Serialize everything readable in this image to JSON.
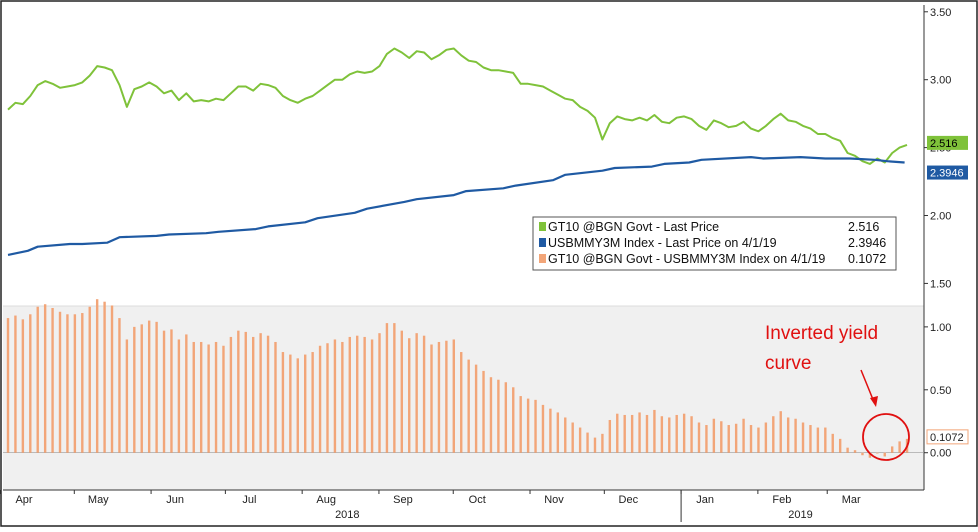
{
  "colors": {
    "gt10": "#7fc23a",
    "usbmmy3m": "#1f5aa3",
    "spread": "#f2a578",
    "spread_panel_bg": "#f0f0f0",
    "annotation": "#e01010",
    "axis": "#333333"
  },
  "chart_data": [
    {
      "type": "line",
      "panel": "upper",
      "ylim": [
        1.4,
        3.55
      ],
      "y_ticks": [
        "3.50",
        "3.00",
        "2.50",
        "2.00",
        "1.50"
      ],
      "y_tick_values": [
        3.5,
        3.0,
        2.5,
        2.0,
        1.5
      ],
      "x_range_days": [
        0,
        365
      ],
      "series": [
        {
          "name": "GT10 @BGN Govt - Last Price",
          "legend_value": "2.516",
          "end_label": "2.516",
          "color": "#7fc23a",
          "x": [
            0,
            3,
            6,
            9,
            12,
            15,
            18,
            21,
            24,
            27,
            30,
            33,
            36,
            39,
            42,
            45,
            48,
            51,
            54,
            57,
            60,
            63,
            66,
            69,
            72,
            75,
            78,
            81,
            84,
            87,
            90,
            93,
            96,
            99,
            102,
            105,
            108,
            111,
            114,
            117,
            120,
            123,
            126,
            129,
            132,
            135,
            138,
            141,
            144,
            147,
            150,
            153,
            156,
            159,
            162,
            165,
            168,
            171,
            174,
            177,
            180,
            183,
            186,
            189,
            192,
            195,
            198,
            201,
            204,
            207,
            210,
            213,
            216,
            219,
            222,
            225,
            228,
            231,
            234,
            237,
            240,
            243,
            246,
            249,
            252,
            255,
            258,
            261,
            264,
            267,
            270,
            273,
            276,
            279,
            282,
            285,
            288,
            291,
            294,
            297,
            300,
            303,
            306,
            309,
            312,
            315,
            318,
            321,
            324,
            327,
            330,
            333,
            336,
            339,
            342,
            345,
            348,
            351,
            354,
            357,
            360,
            363
          ],
          "y": [
            2.78,
            2.83,
            2.82,
            2.88,
            2.96,
            2.99,
            2.97,
            2.94,
            2.95,
            2.96,
            2.98,
            3.03,
            3.1,
            3.09,
            3.07,
            2.96,
            2.8,
            2.93,
            2.95,
            2.98,
            2.95,
            2.9,
            2.92,
            2.85,
            2.9,
            2.84,
            2.85,
            2.84,
            2.86,
            2.85,
            2.9,
            2.95,
            2.95,
            2.92,
            2.97,
            2.96,
            2.94,
            2.88,
            2.85,
            2.83,
            2.86,
            2.88,
            2.92,
            2.96,
            3.0,
            3.0,
            3.04,
            3.06,
            3.05,
            3.06,
            3.1,
            3.19,
            3.23,
            3.2,
            3.16,
            3.21,
            3.2,
            3.15,
            3.18,
            3.22,
            3.23,
            3.18,
            3.14,
            3.13,
            3.09,
            3.07,
            3.07,
            3.06,
            3.05,
            2.97,
            2.97,
            2.96,
            2.95,
            2.92,
            2.89,
            2.86,
            2.85,
            2.8,
            2.77,
            2.72,
            2.56,
            2.68,
            2.73,
            2.71,
            2.7,
            2.72,
            2.7,
            2.74,
            2.69,
            2.68,
            2.72,
            2.73,
            2.71,
            2.66,
            2.63,
            2.7,
            2.68,
            2.65,
            2.66,
            2.69,
            2.64,
            2.62,
            2.66,
            2.71,
            2.75,
            2.7,
            2.69,
            2.66,
            2.64,
            2.6,
            2.6,
            2.57,
            2.55,
            2.46,
            2.44,
            2.4,
            2.38,
            2.42,
            2.39,
            2.46,
            2.5,
            2.52
          ]
        },
        {
          "name": "USBMMY3M Index - Last Price on 4/1/19",
          "legend_value": "2.3946",
          "end_label": "2.3946",
          "color": "#1f5aa3",
          "x": [
            0,
            8,
            12,
            25,
            30,
            40,
            45,
            60,
            65,
            80,
            85,
            100,
            105,
            120,
            125,
            140,
            145,
            160,
            165,
            180,
            185,
            200,
            205,
            220,
            225,
            240,
            245,
            260,
            265,
            275,
            280,
            300,
            305,
            320,
            330,
            340,
            350,
            355,
            362
          ],
          "y": [
            1.71,
            1.74,
            1.77,
            1.79,
            1.79,
            1.8,
            1.84,
            1.85,
            1.86,
            1.87,
            1.88,
            1.9,
            1.92,
            1.95,
            1.98,
            2.02,
            2.05,
            2.1,
            2.12,
            2.15,
            2.18,
            2.2,
            2.22,
            2.26,
            2.3,
            2.33,
            2.35,
            2.36,
            2.38,
            2.39,
            2.41,
            2.43,
            2.42,
            2.43,
            2.42,
            2.42,
            2.41,
            2.4,
            2.39
          ]
        }
      ]
    },
    {
      "type": "bar",
      "panel": "lower",
      "ylim": [
        -0.05,
        1.15
      ],
      "y_ticks": [
        "1.00",
        "0.50",
        "0.00"
      ],
      "y_tick_values": [
        1.0,
        0.5,
        0.0
      ],
      "series": [
        {
          "name": "GT10 @BGN Govt - USBMMY3M Index on 4/1/19",
          "legend_value": "0.1072",
          "end_label": "0.1072",
          "color": "#f2a578",
          "x": [
            0,
            3,
            6,
            9,
            12,
            15,
            18,
            21,
            24,
            27,
            30,
            33,
            36,
            39,
            42,
            45,
            48,
            51,
            54,
            57,
            60,
            63,
            66,
            69,
            72,
            75,
            78,
            81,
            84,
            87,
            90,
            93,
            96,
            99,
            102,
            105,
            108,
            111,
            114,
            117,
            120,
            123,
            126,
            129,
            132,
            135,
            138,
            141,
            144,
            147,
            150,
            153,
            156,
            159,
            162,
            165,
            168,
            171,
            174,
            177,
            180,
            183,
            186,
            189,
            192,
            195,
            198,
            201,
            204,
            207,
            210,
            213,
            216,
            219,
            222,
            225,
            228,
            231,
            234,
            237,
            240,
            243,
            246,
            249,
            252,
            255,
            258,
            261,
            264,
            267,
            270,
            273,
            276,
            279,
            282,
            285,
            288,
            291,
            294,
            297,
            300,
            303,
            306,
            309,
            312,
            315,
            318,
            321,
            324,
            327,
            330,
            333,
            336,
            339,
            342,
            345,
            348,
            351,
            354,
            357,
            360,
            363
          ],
          "values": [
            1.07,
            1.09,
            1.06,
            1.1,
            1.16,
            1.18,
            1.15,
            1.12,
            1.1,
            1.1,
            1.11,
            1.16,
            1.22,
            1.2,
            1.17,
            1.07,
            0.9,
            1.0,
            1.02,
            1.05,
            1.04,
            0.97,
            0.98,
            0.9,
            0.94,
            0.88,
            0.88,
            0.86,
            0.88,
            0.85,
            0.92,
            0.97,
            0.96,
            0.92,
            0.95,
            0.93,
            0.88,
            0.8,
            0.78,
            0.75,
            0.78,
            0.8,
            0.85,
            0.87,
            0.9,
            0.88,
            0.92,
            0.93,
            0.92,
            0.9,
            0.95,
            1.03,
            1.03,
            0.97,
            0.91,
            0.95,
            0.93,
            0.86,
            0.88,
            0.89,
            0.9,
            0.8,
            0.74,
            0.7,
            0.65,
            0.6,
            0.58,
            0.56,
            0.52,
            0.45,
            0.43,
            0.42,
            0.38,
            0.35,
            0.32,
            0.28,
            0.24,
            0.2,
            0.16,
            0.12,
            0.15,
            0.26,
            0.31,
            0.3,
            0.3,
            0.32,
            0.3,
            0.34,
            0.29,
            0.28,
            0.3,
            0.31,
            0.29,
            0.24,
            0.22,
            0.27,
            0.25,
            0.22,
            0.23,
            0.27,
            0.22,
            0.2,
            0.24,
            0.29,
            0.33,
            0.28,
            0.27,
            0.24,
            0.22,
            0.2,
            0.2,
            0.15,
            0.11,
            0.04,
            0.02,
            -0.02,
            -0.04,
            0.0,
            -0.03,
            0.05,
            0.09,
            0.11
          ]
        }
      ]
    }
  ],
  "x_axis": {
    "months": [
      "Apr",
      "May",
      "Jun",
      "Jul",
      "Aug",
      "Sep",
      "Oct",
      "Nov",
      "Dec",
      "Jan",
      "Feb",
      "Mar"
    ],
    "month_days": [
      0,
      30,
      61,
      91,
      122,
      153,
      183,
      214,
      244,
      275,
      306,
      334
    ],
    "years": [
      "2018",
      "2019"
    ],
    "year_days": [
      137,
      320
    ]
  },
  "legend": {
    "items": [
      {
        "label": "GT10 @BGN Govt - Last Price",
        "value": "2.516",
        "color": "#7fc23a"
      },
      {
        "label": "USBMMY3M Index - Last Price on 4/1/19",
        "value": "2.3946",
        "color": "#1f5aa3"
      },
      {
        "label": "GT10 @BGN Govt - USBMMY3M Index on 4/1/19",
        "value": "0.1072",
        "color": "#f2a578"
      }
    ]
  },
  "annotation": {
    "line1": "Inverted yield",
    "line2": "curve"
  }
}
